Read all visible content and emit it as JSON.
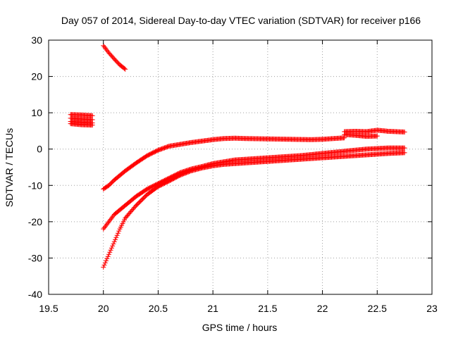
{
  "chart_data": {
    "type": "scatter",
    "title": "Day 057 of 2014, Sidereal Day-to-day VTEC variation (SDTVAR) for receiver p166",
    "xlabel": "GPS time / hours",
    "ylabel": "SDTVAR / TECUs",
    "xlim": [
      19.5,
      23
    ],
    "ylim": [
      -40,
      30
    ],
    "x_ticks": [
      "19.5",
      "20",
      "20.5",
      "21",
      "21.5",
      "22",
      "22.5",
      "23"
    ],
    "y_ticks": [
      "-40",
      "-30",
      "-20",
      "-10",
      "0",
      "10",
      "20",
      "30"
    ],
    "grid": true,
    "marker": "+",
    "series": [
      {
        "color": "#ff0000",
        "segments": [
          {
            "x": [
              19.7,
              19.8,
              19.9
            ],
            "y": [
              9.5,
              9.4,
              9.2
            ]
          },
          {
            "x": [
              19.7,
              19.8,
              19.9
            ],
            "y": [
              8.5,
              8.3,
              8.1
            ]
          },
          {
            "x": [
              19.7,
              19.8,
              19.9
            ],
            "y": [
              7.6,
              7.4,
              7.2
            ]
          },
          {
            "x": [
              19.7,
              19.8,
              19.9
            ],
            "y": [
              7.0,
              6.7,
              6.6
            ]
          },
          {
            "x": [
              20.0,
              20.05,
              20.1,
              20.15,
              20.2
            ],
            "y": [
              28.5,
              26.5,
              24.8,
              23.2,
              22.0
            ]
          },
          {
            "x": [
              20.0,
              20.05,
              20.1,
              20.2,
              20.3,
              20.4,
              20.5,
              20.6,
              20.7,
              20.8,
              20.9,
              21.0,
              21.1,
              21.2,
              21.3,
              21.5,
              21.7,
              21.9,
              22.0,
              22.1,
              22.2
            ],
            "y": [
              -11.0,
              -10.0,
              -8.5,
              -6.0,
              -3.8,
              -1.8,
              -0.3,
              0.8,
              1.3,
              1.8,
              2.2,
              2.6,
              2.9,
              3.0,
              2.9,
              2.8,
              2.7,
              2.6,
              2.7,
              2.9,
              3.1
            ]
          },
          {
            "x": [
              20.0,
              20.05,
              20.1,
              20.2,
              20.3,
              20.4,
              20.5,
              20.6,
              20.7,
              20.8,
              20.9,
              21.0,
              21.1,
              21.2,
              21.4,
              21.6,
              21.8,
              22.0,
              22.2,
              22.4,
              22.6,
              22.75
            ],
            "y": [
              -22.0,
              -20.0,
              -18.0,
              -15.5,
              -13.0,
              -11.0,
              -9.5,
              -8.0,
              -6.5,
              -5.5,
              -4.8,
              -4.0,
              -3.5,
              -3.0,
              -2.6,
              -2.2,
              -1.8,
              -1.2,
              -0.6,
              0.0,
              0.3,
              0.3
            ]
          },
          {
            "x": [
              20.0,
              20.05,
              20.1,
              20.15,
              20.2,
              20.3,
              20.4,
              20.5,
              20.6,
              20.7,
              20.8,
              20.9,
              21.0,
              21.1,
              21.2,
              21.4,
              21.6,
              21.8,
              22.0,
              22.2,
              22.4,
              22.6,
              22.75
            ],
            "y": [
              -32.5,
              -29.0,
              -25.5,
              -22.0,
              -19.0,
              -15.5,
              -12.5,
              -10.3,
              -8.8,
              -7.2,
              -6.0,
              -5.2,
              -4.6,
              -4.2,
              -4.0,
              -3.6,
              -3.2,
              -2.8,
              -2.4,
              -2.0,
              -1.6,
              -1.2,
              -1.0
            ]
          },
          {
            "x": [
              22.2,
              22.3,
              22.4,
              22.5,
              22.6,
              22.75
            ],
            "y": [
              4.8,
              4.9,
              4.8,
              5.2,
              4.9,
              4.7
            ]
          },
          {
            "x": [
              22.2,
              22.3,
              22.4,
              22.5
            ],
            "y": [
              4.0,
              3.8,
              3.5,
              3.6
            ]
          }
        ]
      }
    ]
  }
}
